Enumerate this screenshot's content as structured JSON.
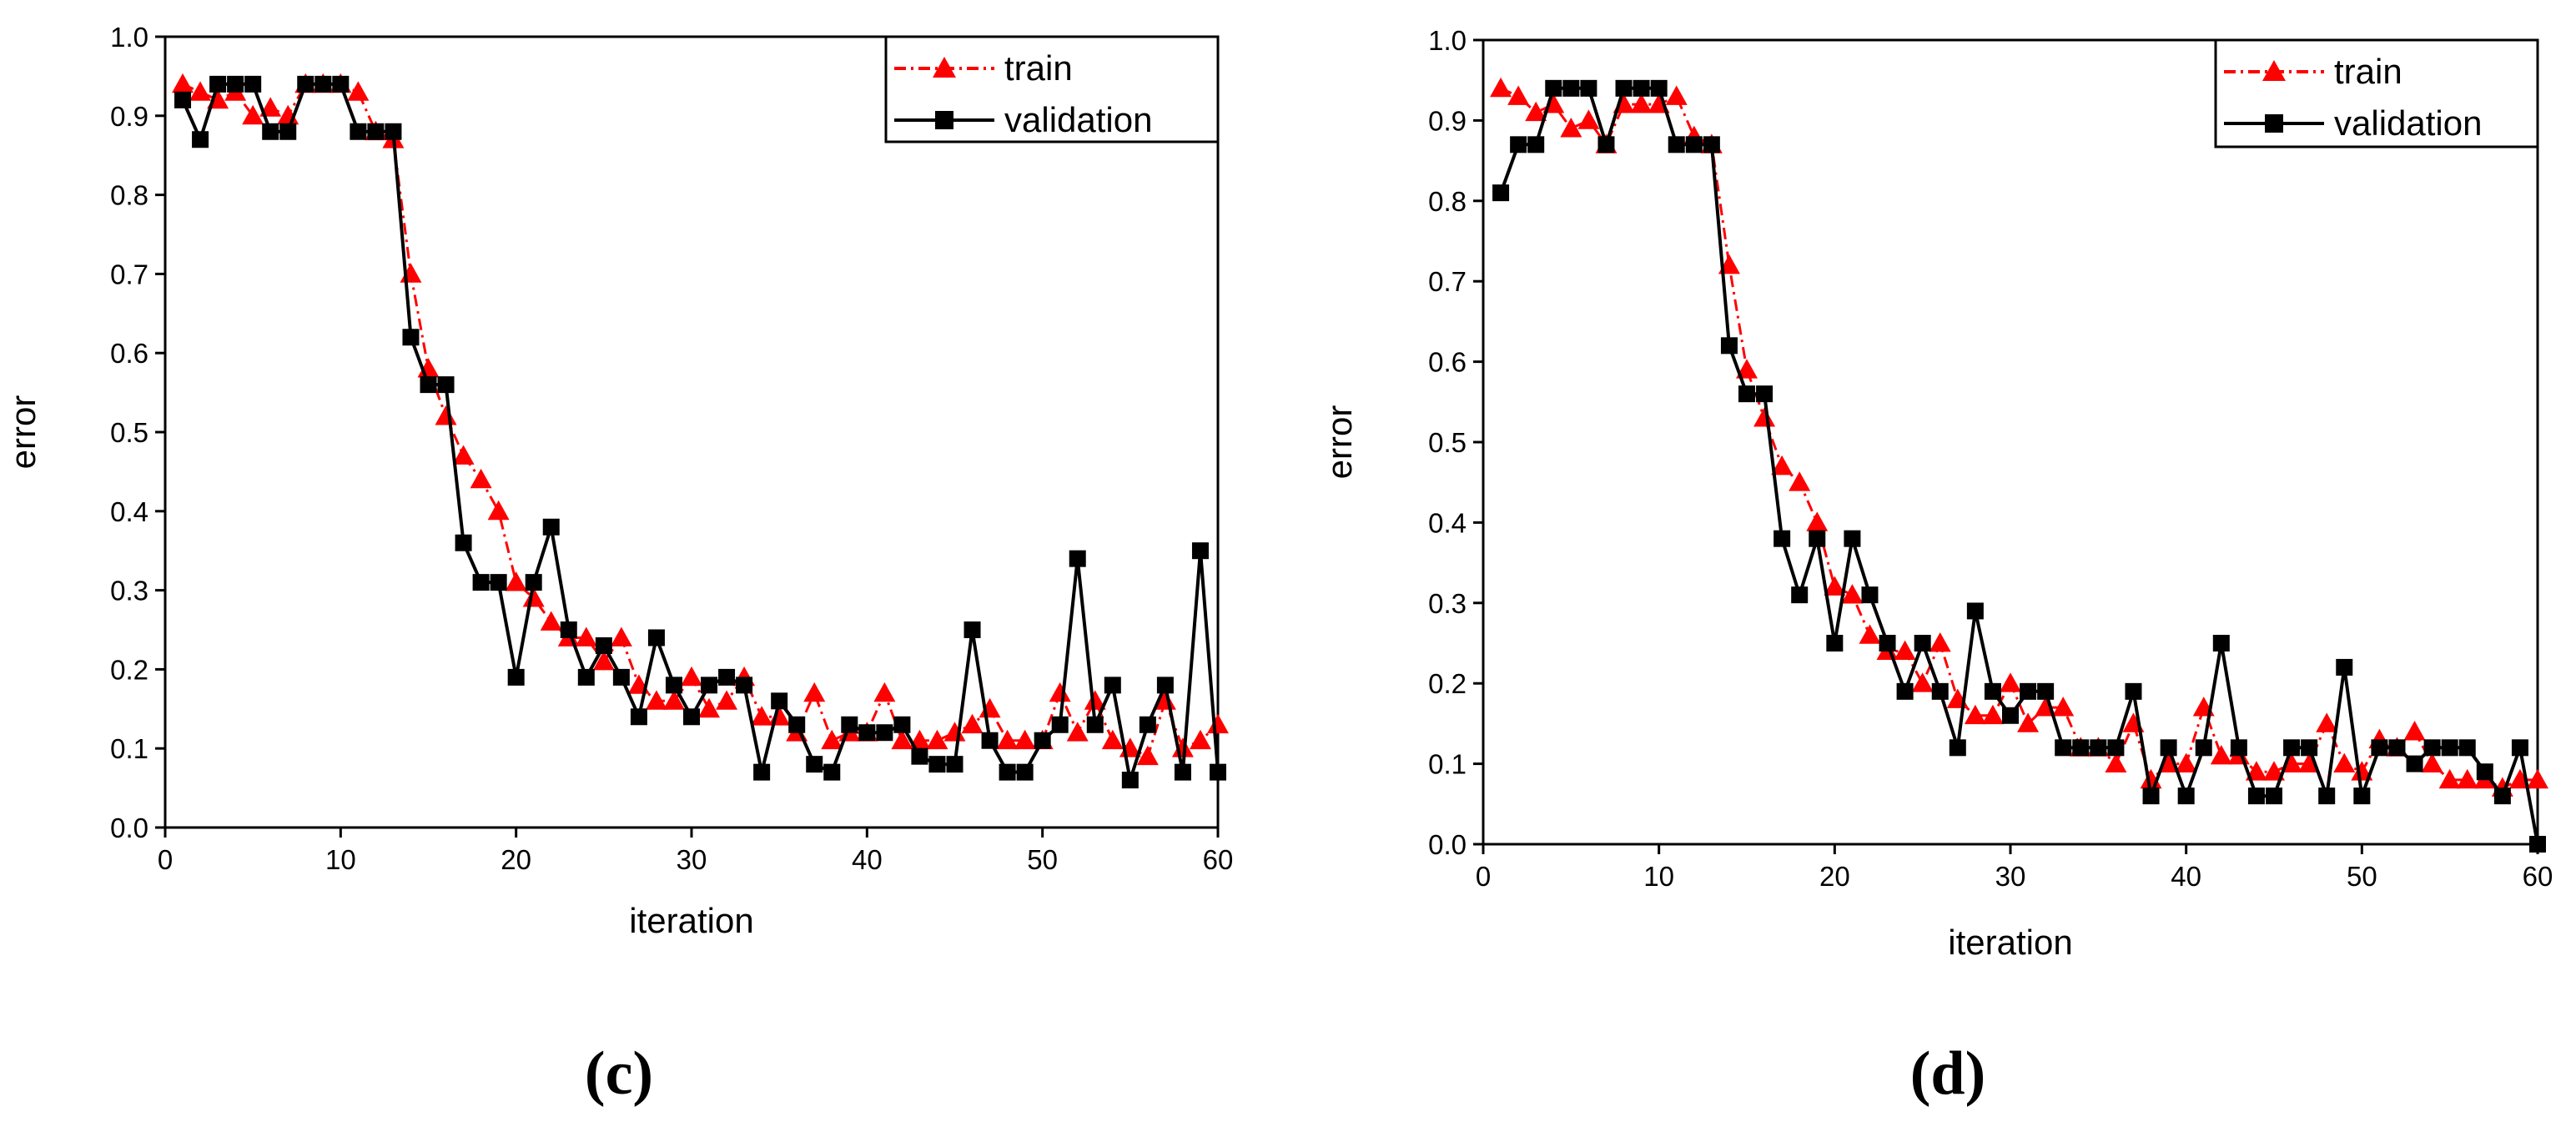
{
  "captions": [
    "(c)",
    "(d)"
  ],
  "colors": {
    "train": "#ff0000",
    "validation": "#000000"
  },
  "chart_data": [
    {
      "type": "line",
      "title": "",
      "xlabel": "iteration",
      "ylabel": "error",
      "xlim": [
        0,
        60
      ],
      "ylim": [
        0.0,
        1.0
      ],
      "xticks": [
        "0",
        "10",
        "20",
        "30",
        "40",
        "50",
        "60"
      ],
      "yticks": [
        "0.0",
        "0.1",
        "0.2",
        "0.3",
        "0.4",
        "0.5",
        "0.6",
        "0.7",
        "0.8",
        "0.9",
        "1.0"
      ],
      "legend_position": "top-right",
      "grid": false,
      "x": [
        1,
        2,
        3,
        4,
        5,
        6,
        7,
        8,
        9,
        10,
        11,
        12,
        13,
        14,
        15,
        16,
        17,
        18,
        19,
        20,
        21,
        22,
        23,
        24,
        25,
        26,
        27,
        28,
        29,
        30,
        31,
        32,
        33,
        34,
        35,
        36,
        37,
        38,
        39,
        40,
        41,
        42,
        43,
        44,
        45,
        46,
        47,
        48,
        49,
        50,
        51,
        52,
        53,
        54,
        55,
        56,
        57,
        58,
        59,
        60
      ],
      "series": [
        {
          "name": "train",
          "marker": "triangle",
          "values": [
            0.94,
            0.93,
            0.92,
            0.93,
            0.9,
            0.91,
            0.9,
            0.94,
            0.94,
            0.94,
            0.93,
            0.88,
            0.87,
            0.7,
            0.58,
            0.52,
            0.47,
            0.44,
            0.4,
            0.31,
            0.29,
            0.26,
            0.24,
            0.24,
            0.21,
            0.24,
            0.18,
            0.16,
            0.16,
            0.19,
            0.15,
            0.16,
            0.19,
            0.14,
            0.14,
            0.12,
            0.17,
            0.11,
            0.12,
            0.12,
            0.17,
            0.11,
            0.11,
            0.11,
            0.12,
            0.13,
            0.15,
            0.11,
            0.11,
            0.11,
            0.17,
            0.12,
            0.16,
            0.11,
            0.1,
            0.09,
            0.16,
            0.1,
            0.11,
            0.13
          ]
        },
        {
          "name": "validation",
          "marker": "square",
          "values": [
            0.92,
            0.87,
            0.94,
            0.94,
            0.94,
            0.88,
            0.88,
            0.94,
            0.94,
            0.94,
            0.88,
            0.88,
            0.88,
            0.62,
            0.56,
            0.56,
            0.36,
            0.31,
            0.31,
            0.19,
            0.31,
            0.38,
            0.25,
            0.19,
            0.23,
            0.19,
            0.14,
            0.24,
            0.18,
            0.14,
            0.18,
            0.19,
            0.18,
            0.07,
            0.16,
            0.13,
            0.08,
            0.07,
            0.13,
            0.12,
            0.12,
            0.13,
            0.09,
            0.08,
            0.08,
            0.25,
            0.11,
            0.07,
            0.07,
            0.11,
            0.13,
            0.34,
            0.13,
            0.18,
            0.06,
            0.13,
            0.18,
            0.07,
            0.35,
            0.07
          ]
        }
      ]
    },
    {
      "type": "line",
      "title": "",
      "xlabel": "iteration",
      "ylabel": "error",
      "xlim": [
        0,
        60
      ],
      "ylim": [
        0.0,
        1.0
      ],
      "xticks": [
        "0",
        "10",
        "20",
        "30",
        "40",
        "50",
        "60"
      ],
      "yticks": [
        "0.0",
        "0.1",
        "0.2",
        "0.3",
        "0.4",
        "0.5",
        "0.6",
        "0.7",
        "0.8",
        "0.9",
        "1.0"
      ],
      "legend_position": "top-right",
      "grid": false,
      "x": [
        1,
        2,
        3,
        4,
        5,
        6,
        7,
        8,
        9,
        10,
        11,
        12,
        13,
        14,
        15,
        16,
        17,
        18,
        19,
        20,
        21,
        22,
        23,
        24,
        25,
        26,
        27,
        28,
        29,
        30,
        31,
        32,
        33,
        34,
        35,
        36,
        37,
        38,
        39,
        40,
        41,
        42,
        43,
        44,
        45,
        46,
        47,
        48,
        49,
        50,
        51,
        52,
        53,
        54,
        55,
        56,
        57,
        58,
        59,
        60
      ],
      "series": [
        {
          "name": "train",
          "marker": "triangle",
          "values": [
            0.94,
            0.93,
            0.91,
            0.92,
            0.89,
            0.9,
            0.87,
            0.92,
            0.92,
            0.92,
            0.93,
            0.88,
            0.87,
            0.72,
            0.59,
            0.53,
            0.47,
            0.45,
            0.4,
            0.32,
            0.31,
            0.26,
            0.24,
            0.24,
            0.2,
            0.25,
            0.18,
            0.16,
            0.16,
            0.2,
            0.15,
            0.17,
            0.17,
            0.12,
            0.12,
            0.1,
            0.15,
            0.08,
            0.1,
            0.1,
            0.17,
            0.11,
            0.11,
            0.09,
            0.09,
            0.1,
            0.1,
            0.15,
            0.1,
            0.09,
            0.13,
            0.12,
            0.14,
            0.1,
            0.08,
            0.08,
            0.08,
            0.07,
            0.08,
            0.08
          ]
        },
        {
          "name": "validation",
          "marker": "square",
          "values": [
            0.81,
            0.87,
            0.87,
            0.94,
            0.94,
            0.94,
            0.87,
            0.94,
            0.94,
            0.94,
            0.87,
            0.87,
            0.87,
            0.62,
            0.56,
            0.56,
            0.38,
            0.31,
            0.38,
            0.25,
            0.38,
            0.31,
            0.25,
            0.19,
            0.25,
            0.19,
            0.12,
            0.29,
            0.19,
            0.16,
            0.19,
            0.19,
            0.12,
            0.12,
            0.12,
            0.12,
            0.19,
            0.06,
            0.12,
            0.06,
            0.12,
            0.25,
            0.12,
            0.06,
            0.06,
            0.12,
            0.12,
            0.06,
            0.22,
            0.06,
            0.12,
            0.12,
            0.1,
            0.12,
            0.12,
            0.12,
            0.09,
            0.06,
            0.12,
            0.0
          ]
        }
      ]
    }
  ]
}
